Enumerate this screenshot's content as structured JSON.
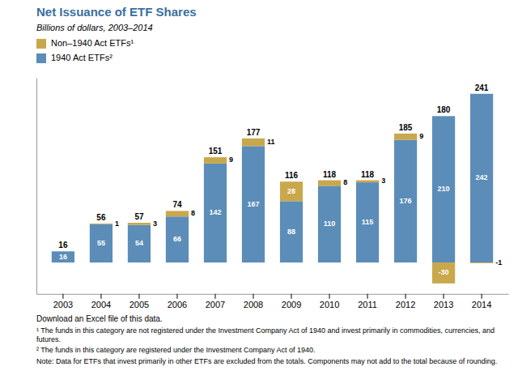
{
  "chart_data": {
    "type": "bar",
    "stacked": true,
    "data_labels": true,
    "tick_labels": "x",
    "title": "Net Issuance of ETF Shares",
    "subtitle": "Billions of dollars, 2003–2014",
    "categories": [
      "2003",
      "2004",
      "2005",
      "2006",
      "2007",
      "2008",
      "2009",
      "2010",
      "2011",
      "2012",
      "2013",
      "2014"
    ],
    "series": [
      {
        "name": "1940 Act ETFs²",
        "color": "#5b8db8",
        "values": [
          16,
          55,
          54,
          66,
          142,
          167,
          88,
          110,
          115,
          176,
          210,
          242
        ]
      },
      {
        "name": "Non–1940 Act ETFs¹",
        "color": "#c9a84c",
        "values": [
          0,
          1,
          3,
          8,
          9,
          11,
          28,
          8,
          3,
          9,
          -30,
          -1
        ]
      }
    ],
    "totals": [
      16,
      56,
      57,
      74,
      151,
      177,
      116,
      118,
      118,
      185,
      180,
      241
    ],
    "ylim": [
      -45,
      265
    ],
    "annotations": [
      "Download an Excel file of this data.",
      "¹ The funds in this category are not registered under the Investment Company Act of 1940 and invest primarily in commodities, currencies, and futures.",
      "² The funds in this category are registered under the Investment Company Act of 1940.",
      "Note: Data for ETFs that invest primarily in other ETFs are excluded from the totals. Components may not add to the total because of rounding."
    ]
  }
}
